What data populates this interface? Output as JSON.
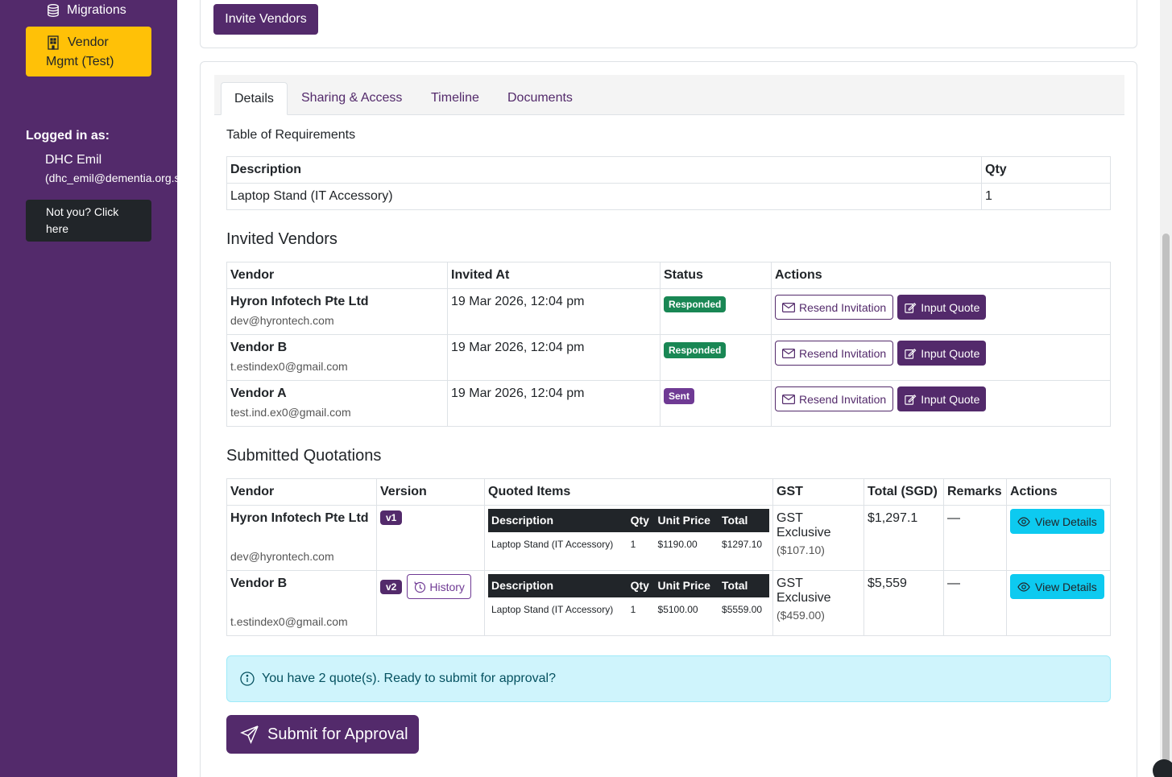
{
  "sidebar": {
    "migrations_label": "Migrations",
    "active_label_line1": "Vendor",
    "active_label_line2": "Mgmt (Test)",
    "logged_in_label": "Logged in as:",
    "user_name": "DHC Emil",
    "user_email": "(dhc_emil@dementia.org.sg)",
    "not_you_line1": "Not you? Click",
    "not_you_line2": "here"
  },
  "top": {
    "invite_label": "Invite Vendors"
  },
  "tabs": [
    {
      "label": "Details"
    },
    {
      "label": "Sharing & Access"
    },
    {
      "label": "Timeline"
    },
    {
      "label": "Documents"
    }
  ],
  "requirements": {
    "title": "Table of Requirements",
    "headers": {
      "description": "Description",
      "qty": "Qty"
    },
    "rows": [
      {
        "description": "Laptop Stand (IT Accessory)",
        "qty": "1"
      }
    ]
  },
  "invited": {
    "title": "Invited Vendors",
    "headers": {
      "vendor": "Vendor",
      "invited_at": "Invited At",
      "status": "Status",
      "actions": "Actions"
    },
    "resend_label": "Resend Invitation",
    "input_quote_label": "Input Quote",
    "rows": [
      {
        "name": "Hyron Infotech Pte Ltd",
        "email": "dev@hyrontech.com",
        "invited_at": "19 Mar 2026, 12:04 pm",
        "status": "Responded"
      },
      {
        "name": "Vendor B",
        "email": "t.estindex0@gmail.com",
        "invited_at": "19 Mar 2026, 12:04 pm",
        "status": "Responded"
      },
      {
        "name": "Vendor A",
        "email": "test.ind.ex0@gmail.com",
        "invited_at": "19 Mar 2026, 12:04 pm",
        "status": "Sent"
      }
    ]
  },
  "quotations": {
    "title": "Submitted Quotations",
    "headers": {
      "vendor": "Vendor",
      "version": "Version",
      "items": "Quoted Items",
      "gst": "GST",
      "total": "Total (SGD)",
      "remarks": "Remarks",
      "actions": "Actions"
    },
    "inner_headers": {
      "description": "Description",
      "qty": "Qty",
      "unit_price": "Unit Price",
      "total": "Total"
    },
    "history_label": "History",
    "view_label": "View Details",
    "rows": [
      {
        "name": "Hyron Infotech Pte Ltd",
        "email": "dev@hyrontech.com",
        "version": "v1",
        "item_desc": "Laptop Stand (IT Accessory)",
        "item_qty": "1",
        "item_unit": "$1190.00",
        "item_total": "$1297.10",
        "gst": "GST Exclusive",
        "gst_amount": "($107.10)",
        "total": "$1,297.1",
        "remarks": "—"
      },
      {
        "name": "Vendor B",
        "email": "t.estindex0@gmail.com",
        "version": "v2",
        "item_desc": "Laptop Stand (IT Accessory)",
        "item_qty": "1",
        "item_unit": "$5100.00",
        "item_total": "$5559.00",
        "gst": "GST Exclusive",
        "gst_amount": "($459.00)",
        "total": "$5,559",
        "remarks": "—"
      }
    ]
  },
  "alert": {
    "text": "You have 2 quote(s). Ready to submit for approval?"
  },
  "submit": {
    "label": "Submit for Approval"
  }
}
